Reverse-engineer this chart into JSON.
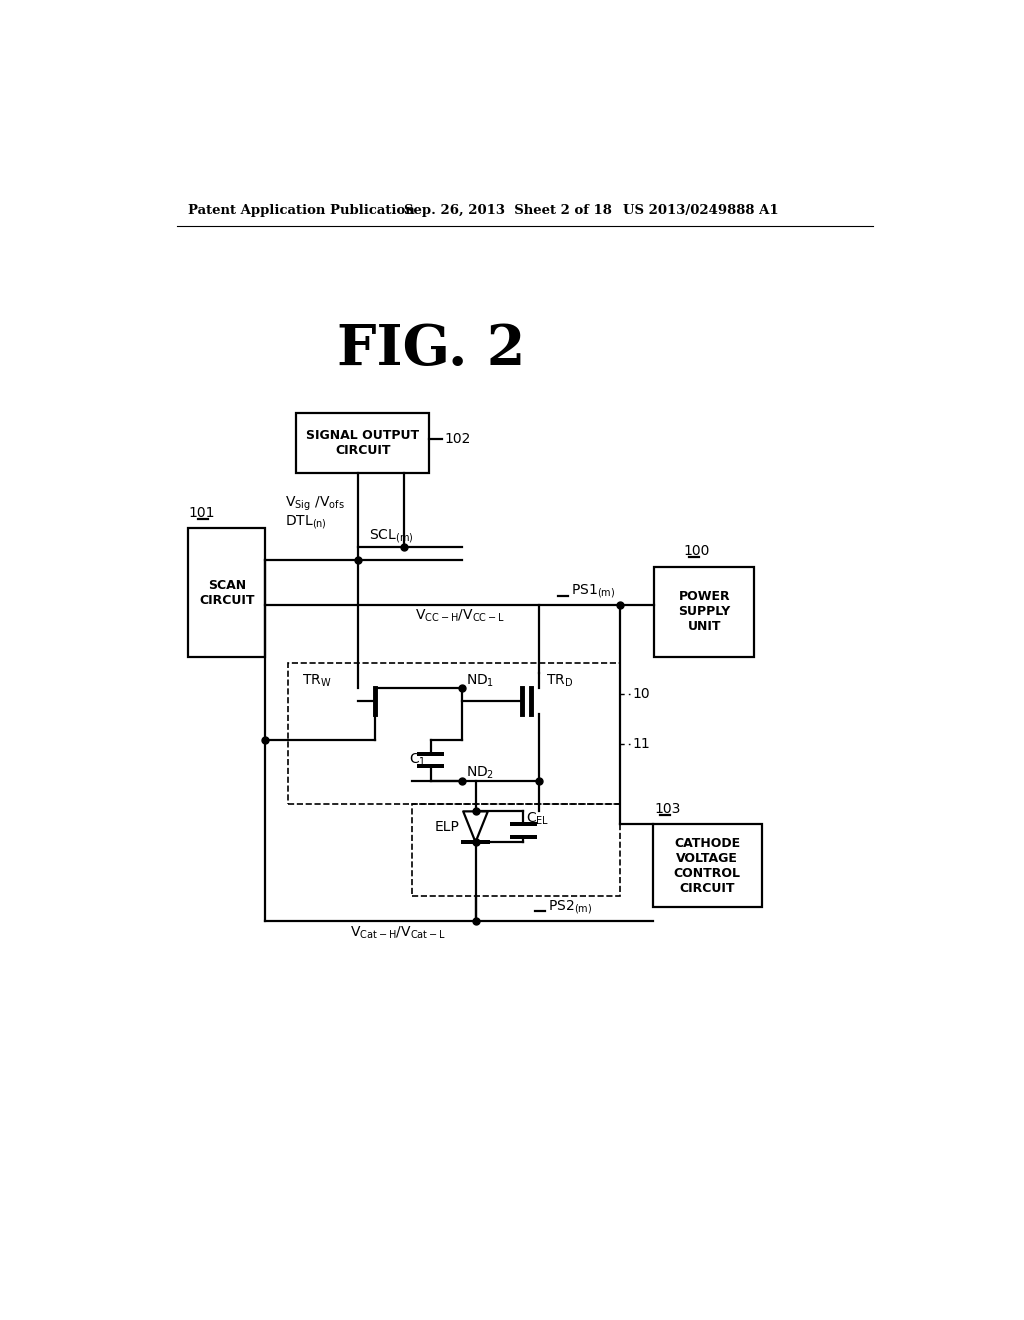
{
  "bg_color": "#ffffff",
  "header_left": "Patent Application Publication",
  "header_mid": "Sep. 26, 2013  Sheet 2 of 18",
  "header_right": "US 2013/0249888 A1",
  "fig_label": "FIG. 2"
}
